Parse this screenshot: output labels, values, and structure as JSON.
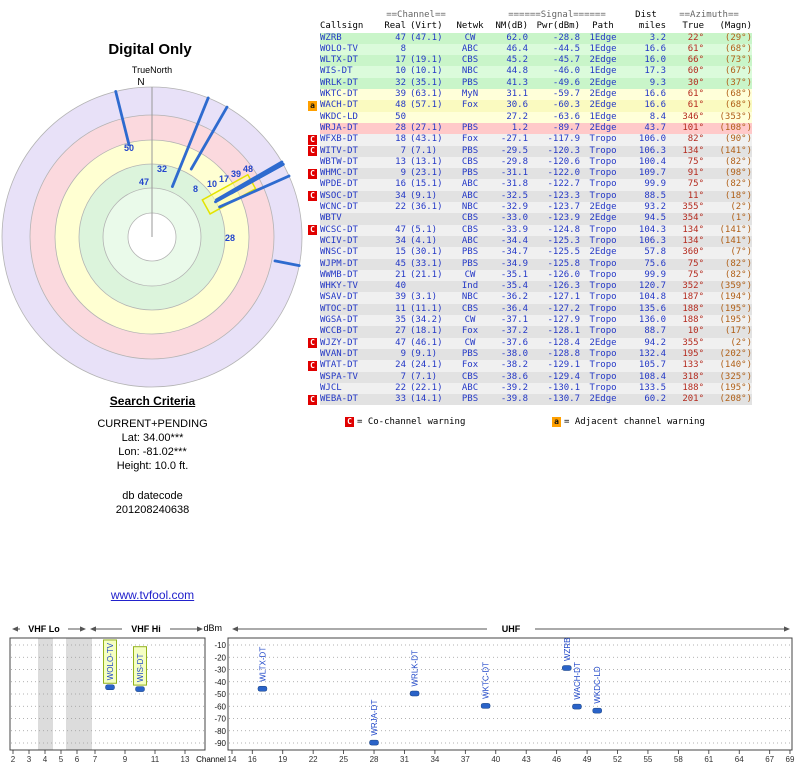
{
  "search": {
    "title": "Search Criteria",
    "mode": "CURRENT+PENDING",
    "lat": "Lat: 34.00***",
    "lon": "Lon: -81.02***",
    "height": "Height: 10.0 ft.",
    "datecode_label": "db datecode",
    "datecode": "201208240638"
  },
  "link": {
    "text": "www.tvfool.com"
  },
  "legend": {
    "c_symbol": "C",
    "c_text": "= Co-channel warning",
    "a_symbol": "a",
    "a_text": "= Adjacent channel warning"
  },
  "table": {
    "header_groups": {
      "channel": "==Channel==",
      "signal": "======Signal======",
      "dist": "Dist",
      "azimuth": "==Azimuth=="
    },
    "headers": {
      "callsign": "Callsign",
      "real": "Real",
      "virt": "(Virt)",
      "netwk": "Netwk",
      "nm": "NM(dB)",
      "pwr": "Pwr(dBm)",
      "path": "Path",
      "miles": "miles",
      "true": "True",
      "magn": "(Magn)"
    },
    "rows": [
      {
        "flag": "",
        "callsign": "WZRB",
        "real": "47",
        "virt": "(47.1)",
        "netwk": "CW",
        "nm": "62.0",
        "pwr": "-28.8",
        "path": "1Edge",
        "miles": "3.2",
        "true": "22°",
        "magn": "(29°)",
        "tier": "green"
      },
      {
        "flag": "",
        "callsign": "WOLO-TV",
        "real": "8",
        "virt": "",
        "netwk": "ABC",
        "nm": "46.4",
        "pwr": "-44.5",
        "path": "1Edge",
        "miles": "16.6",
        "true": "61°",
        "magn": "(68°)",
        "tier": "green"
      },
      {
        "flag": "",
        "callsign": "WLTX-DT",
        "real": "17",
        "virt": "(19.1)",
        "netwk": "CBS",
        "nm": "45.2",
        "pwr": "-45.7",
        "path": "2Edge",
        "miles": "16.0",
        "true": "66°",
        "magn": "(73°)",
        "tier": "green"
      },
      {
        "flag": "",
        "callsign": "WIS-DT",
        "real": "10",
        "virt": "(10.1)",
        "netwk": "NBC",
        "nm": "44.8",
        "pwr": "-46.0",
        "path": "1Edge",
        "miles": "17.3",
        "true": "60°",
        "magn": "(67°)",
        "tier": "green"
      },
      {
        "flag": "",
        "callsign": "WRLK-DT",
        "real": "32",
        "virt": "(35.1)",
        "netwk": "PBS",
        "nm": "41.3",
        "pwr": "-49.6",
        "path": "2Edge",
        "miles": "9.3",
        "true": "30°",
        "magn": "(37°)",
        "tier": "green"
      },
      {
        "flag": "",
        "callsign": "WKTC-DT",
        "real": "39",
        "virt": "(63.1)",
        "netwk": "MyN",
        "nm": "31.1",
        "pwr": "-59.7",
        "path": "2Edge",
        "miles": "16.6",
        "true": "61°",
        "magn": "(68°)",
        "tier": "yellow"
      },
      {
        "flag": "a",
        "callsign": "WACH-DT",
        "real": "48",
        "virt": "(57.1)",
        "netwk": "Fox",
        "nm": "30.6",
        "pwr": "-60.3",
        "path": "2Edge",
        "miles": "16.6",
        "true": "61°",
        "magn": "(68°)",
        "tier": "yellow"
      },
      {
        "flag": "",
        "callsign": "WKDC-LD",
        "real": "50",
        "virt": "",
        "netwk": "",
        "nm": "27.2",
        "pwr": "-63.6",
        "path": "1Edge",
        "miles": "8.4",
        "true": "346°",
        "magn": "(353°)",
        "tier": "yellow"
      },
      {
        "flag": "",
        "callsign": "WRJA-DT",
        "real": "28",
        "virt": "(27.1)",
        "netwk": "PBS",
        "nm": "1.2",
        "pwr": "-89.7",
        "path": "2Edge",
        "miles": "43.7",
        "true": "101°",
        "magn": "(108°)",
        "tier": "pink"
      },
      {
        "flag": "C",
        "callsign": "WFXB-DT",
        "real": "18",
        "virt": "(43.1)",
        "netwk": "Fox",
        "nm": "-27.1",
        "pwr": "-117.9",
        "path": "Tropo",
        "miles": "106.0",
        "true": "82°",
        "magn": "(90°)",
        "tier": "gray"
      },
      {
        "flag": "C",
        "callsign": "WITV-DT",
        "real": "7",
        "virt": "(7.1)",
        "netwk": "PBS",
        "nm": "-29.5",
        "pwr": "-120.3",
        "path": "Tropo",
        "miles": "106.3",
        "true": "134°",
        "magn": "(141°)",
        "tier": "gray"
      },
      {
        "flag": "",
        "callsign": "WBTW-DT",
        "real": "13",
        "virt": "(13.1)",
        "netwk": "CBS",
        "nm": "-29.8",
        "pwr": "-120.6",
        "path": "Tropo",
        "miles": "100.4",
        "true": "75°",
        "magn": "(82°)",
        "tier": "gray"
      },
      {
        "flag": "C",
        "callsign": "WHMC-DT",
        "real": "9",
        "virt": "(23.1)",
        "netwk": "PBS",
        "nm": "-31.1",
        "pwr": "-122.0",
        "path": "Tropo",
        "miles": "109.7",
        "true": "91°",
        "magn": "(98°)",
        "tier": "gray"
      },
      {
        "flag": "",
        "callsign": "WPDE-DT",
        "real": "16",
        "virt": "(15.1)",
        "netwk": "ABC",
        "nm": "-31.8",
        "pwr": "-122.7",
        "path": "Tropo",
        "miles": "99.9",
        "true": "75°",
        "magn": "(82°)",
        "tier": "gray"
      },
      {
        "flag": "C",
        "callsign": "WSOC-DT",
        "real": "34",
        "virt": "(9.1)",
        "netwk": "ABC",
        "nm": "-32.5",
        "pwr": "-123.3",
        "path": "Tropo",
        "miles": "88.5",
        "true": "11°",
        "magn": "(18°)",
        "tier": "gray"
      },
      {
        "flag": "",
        "callsign": "WCNC-DT",
        "real": "22",
        "virt": "(36.1)",
        "netwk": "NBC",
        "nm": "-32.9",
        "pwr": "-123.7",
        "path": "2Edge",
        "miles": "93.2",
        "true": "355°",
        "magn": "(2°)",
        "tier": "gray"
      },
      {
        "flag": "",
        "callsign": "WBTV",
        "real": "",
        "virt": "",
        "netwk": "CBS",
        "nm": "-33.0",
        "pwr": "-123.9",
        "path": "2Edge",
        "miles": "94.5",
        "true": "354°",
        "magn": "(1°)",
        "tier": "gray"
      },
      {
        "flag": "C",
        "callsign": "WCSC-DT",
        "real": "47",
        "virt": "(5.1)",
        "netwk": "CBS",
        "nm": "-33.9",
        "pwr": "-124.8",
        "path": "Tropo",
        "miles": "104.3",
        "true": "134°",
        "magn": "(141°)",
        "tier": "gray"
      },
      {
        "flag": "",
        "callsign": "WCIV-DT",
        "real": "34",
        "virt": "(4.1)",
        "netwk": "ABC",
        "nm": "-34.4",
        "pwr": "-125.3",
        "path": "Tropo",
        "miles": "106.3",
        "true": "134°",
        "magn": "(141°)",
        "tier": "gray"
      },
      {
        "flag": "",
        "callsign": "WNSC-DT",
        "real": "15",
        "virt": "(30.1)",
        "netwk": "PBS",
        "nm": "-34.7",
        "pwr": "-125.5",
        "path": "2Edge",
        "miles": "57.8",
        "true": "360°",
        "magn": "(7°)",
        "tier": "gray"
      },
      {
        "flag": "",
        "callsign": "WJPM-DT",
        "real": "45",
        "virt": "(33.1)",
        "netwk": "PBS",
        "nm": "-34.9",
        "pwr": "-125.8",
        "path": "Tropo",
        "miles": "75.6",
        "true": "75°",
        "magn": "(82°)",
        "tier": "gray"
      },
      {
        "flag": "",
        "callsign": "WWMB-DT",
        "real": "21",
        "virt": "(21.1)",
        "netwk": "CW",
        "nm": "-35.1",
        "pwr": "-126.0",
        "path": "Tropo",
        "miles": "99.9",
        "true": "75°",
        "magn": "(82°)",
        "tier": "gray"
      },
      {
        "flag": "",
        "callsign": "WHKY-TV",
        "real": "40",
        "virt": "",
        "netwk": "Ind",
        "nm": "-35.4",
        "pwr": "-126.3",
        "path": "Tropo",
        "miles": "120.7",
        "true": "352°",
        "magn": "(359°)",
        "tier": "gray"
      },
      {
        "flag": "",
        "callsign": "WSAV-DT",
        "real": "39",
        "virt": "(3.1)",
        "netwk": "NBC",
        "nm": "-36.2",
        "pwr": "-127.1",
        "path": "Tropo",
        "miles": "104.8",
        "true": "187°",
        "magn": "(194°)",
        "tier": "gray"
      },
      {
        "flag": "",
        "callsign": "WTOC-DT",
        "real": "11",
        "virt": "(11.1)",
        "netwk": "CBS",
        "nm": "-36.4",
        "pwr": "-127.2",
        "path": "Tropo",
        "miles": "135.6",
        "true": "188°",
        "magn": "(195°)",
        "tier": "gray"
      },
      {
        "flag": "",
        "callsign": "WGSA-DT",
        "real": "35",
        "virt": "(34.2)",
        "netwk": "CW",
        "nm": "-37.1",
        "pwr": "-127.9",
        "path": "Tropo",
        "miles": "136.0",
        "true": "188°",
        "magn": "(195°)",
        "tier": "gray"
      },
      {
        "flag": "",
        "callsign": "WCCB-DT",
        "real": "27",
        "virt": "(18.1)",
        "netwk": "Fox",
        "nm": "-37.2",
        "pwr": "-128.1",
        "path": "Tropo",
        "miles": "88.7",
        "true": "10°",
        "magn": "(17°)",
        "tier": "gray"
      },
      {
        "flag": "C",
        "callsign": "WJZY-DT",
        "real": "47",
        "virt": "(46.1)",
        "netwk": "CW",
        "nm": "-37.6",
        "pwr": "-128.4",
        "path": "2Edge",
        "miles": "94.2",
        "true": "355°",
        "magn": "(2°)",
        "tier": "gray"
      },
      {
        "flag": "",
        "callsign": "WVAN-DT",
        "real": "9",
        "virt": "(9.1)",
        "netwk": "PBS",
        "nm": "-38.0",
        "pwr": "-128.8",
        "path": "Tropo",
        "miles": "132.4",
        "true": "195°",
        "magn": "(202°)",
        "tier": "gray"
      },
      {
        "flag": "C",
        "callsign": "WTAT-DT",
        "real": "24",
        "virt": "(24.1)",
        "netwk": "Fox",
        "nm": "-38.2",
        "pwr": "-129.1",
        "path": "Tropo",
        "miles": "105.7",
        "true": "133°",
        "magn": "(140°)",
        "tier": "gray"
      },
      {
        "flag": "",
        "callsign": "WSPA-TV",
        "real": "7",
        "virt": "(7.1)",
        "netwk": "CBS",
        "nm": "-38.6",
        "pwr": "-129.4",
        "path": "Tropo",
        "miles": "108.4",
        "true": "318°",
        "magn": "(325°)",
        "tier": "gray"
      },
      {
        "flag": "",
        "callsign": "WJCL",
        "real": "22",
        "virt": "(22.1)",
        "netwk": "ABC",
        "nm": "-39.2",
        "pwr": "-130.1",
        "path": "Tropo",
        "miles": "133.5",
        "true": "188°",
        "magn": "(195°)",
        "tier": "gray"
      },
      {
        "flag": "C",
        "callsign": "WEBA-DT",
        "real": "33",
        "virt": "(14.1)",
        "netwk": "PBS",
        "nm": "-39.8",
        "pwr": "-130.7",
        "path": "2Edge",
        "miles": "60.2",
        "true": "201°",
        "magn": "(208°)",
        "tier": "gray"
      }
    ]
  },
  "chart_data": [
    {
      "type": "radar",
      "title": "Digital Only",
      "north_label": "TrueNorth",
      "north_letter": "N",
      "rings_outer_to_inner": [
        "lavender-weakest",
        "pink",
        "yellow",
        "green",
        "pale-green",
        "white-strongest"
      ],
      "spokes": [
        {
          "channel": 50,
          "callsign": "WKDC-LD",
          "azimuth_true": 346,
          "nm_db": 27.2
        },
        {
          "channel": 47,
          "callsign": "WZRB",
          "azimuth_true": 22,
          "nm_db": 62.0
        },
        {
          "channel": 32,
          "callsign": "WRLK-DT",
          "azimuth_true": 30,
          "nm_db": 41.3
        },
        {
          "channel": 8,
          "callsign": "WOLO-TV",
          "azimuth_true": 61,
          "nm_db": 46.4
        },
        {
          "channel": 10,
          "callsign": "WIS-DT",
          "azimuth_true": 60,
          "nm_db": 44.8
        },
        {
          "channel": 17,
          "callsign": "WLTX-DT",
          "azimuth_true": 66,
          "nm_db": 45.2
        },
        {
          "channel": 39,
          "callsign": "WKTC-DT",
          "azimuth_true": 61,
          "nm_db": 31.1
        },
        {
          "channel": 48,
          "callsign": "WACH-DT",
          "azimuth_true": 61,
          "nm_db": 30.6
        },
        {
          "channel": 28,
          "callsign": "WRJA-DT",
          "azimuth_true": 101,
          "nm_db": 1.2
        }
      ],
      "label_positions": {
        "50": [
          124,
          151
        ],
        "47": [
          139,
          185
        ],
        "32": [
          157,
          172
        ],
        "8": [
          193,
          192
        ],
        "10": [
          207,
          187
        ],
        "17": [
          219,
          182
        ],
        "39": [
          231,
          177
        ],
        "48": [
          243,
          172
        ],
        "28": [
          225,
          241
        ]
      }
    },
    {
      "type": "scatter",
      "ylabel": "dBm",
      "xlabel": "Channel",
      "ylim": [
        -95,
        -5
      ],
      "yticks": [
        -10,
        -20,
        -30,
        -40,
        -50,
        -60,
        -70,
        -80,
        -90
      ],
      "band_labels": {
        "vhf_lo": "VHF Lo",
        "vhf_hi": "VHF Hi",
        "uhf": "UHF"
      },
      "vhf_xticks": [
        2,
        3,
        4,
        5,
        6,
        7,
        9,
        11,
        13
      ],
      "uhf_xticks": [
        14,
        16,
        19,
        22,
        25,
        28,
        31,
        34,
        37,
        40,
        43,
        46,
        49,
        52,
        55,
        58,
        61,
        64,
        67,
        69
      ],
      "points": [
        {
          "callsign": "WOLO-TV",
          "channel": 8,
          "pwr_dbm": -44.5,
          "band": "vhf",
          "highlight": true
        },
        {
          "callsign": "WIS-DT",
          "channel": 10,
          "pwr_dbm": -46.0,
          "band": "vhf",
          "highlight": true
        },
        {
          "callsign": "WLTX-DT",
          "channel": 17,
          "pwr_dbm": -45.7,
          "band": "uhf",
          "highlight": false
        },
        {
          "callsign": "WRJA-DT",
          "channel": 28,
          "pwr_dbm": -89.7,
          "band": "uhf",
          "highlight": false
        },
        {
          "callsign": "WRLK-DT",
          "channel": 32,
          "pwr_dbm": -49.6,
          "band": "uhf",
          "highlight": false
        },
        {
          "callsign": "WKTC-DT",
          "channel": 39,
          "pwr_dbm": -59.7,
          "band": "uhf",
          "highlight": false
        },
        {
          "callsign": "WZRB",
          "channel": 47,
          "pwr_dbm": -28.8,
          "band": "uhf",
          "highlight": false
        },
        {
          "callsign": "WACH-DT",
          "channel": 48,
          "pwr_dbm": -60.3,
          "band": "uhf",
          "highlight": false
        },
        {
          "callsign": "WKDC-LD",
          "channel": 50,
          "pwr_dbm": -63.6,
          "band": "uhf",
          "highlight": false
        }
      ]
    }
  ]
}
